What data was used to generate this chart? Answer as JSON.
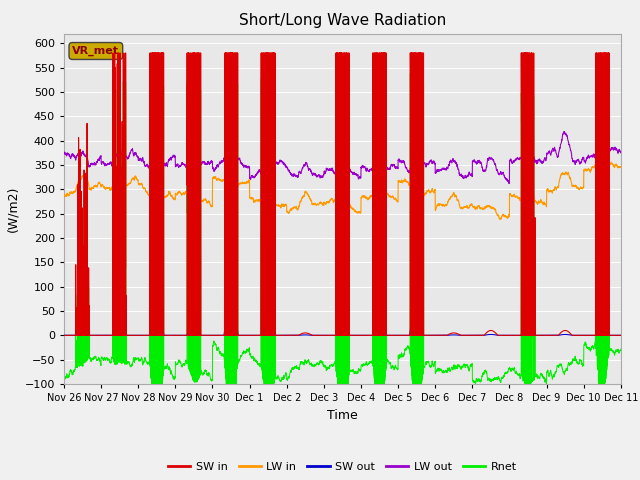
{
  "title": "Short/Long Wave Radiation",
  "xlabel": "Time",
  "ylabel": "(W/m2)",
  "ylim": [
    -100,
    620
  ],
  "yticks": [
    -100,
    -50,
    0,
    50,
    100,
    150,
    200,
    250,
    300,
    350,
    400,
    450,
    500,
    550,
    600
  ],
  "colors": {
    "SW_in": "#dd0000",
    "LW_in": "#ff9900",
    "SW_out": "#0000cc",
    "LW_out": "#9900cc",
    "Rnet": "#00ee00"
  },
  "legend_labels": [
    "SW in",
    "LW in",
    "SW out",
    "LW out",
    "Rnet"
  ],
  "box_label": "VR_met",
  "xtick_labels": [
    "Nov 26",
    "Nov 27",
    "Nov 28",
    "Nov 29",
    "Nov 30",
    "Dec 1",
    "Dec 2",
    "Dec 3",
    "Dec 4",
    "Dec 5",
    "Dec 6",
    "Dec 7",
    "Dec 8",
    "Dec 9",
    "Dec 10",
    "Dec 11"
  ],
  "plot_bg_color": "#e8e8e8",
  "fig_bg_color": "#f0f0f0",
  "num_days": 15,
  "points_per_day": 288
}
